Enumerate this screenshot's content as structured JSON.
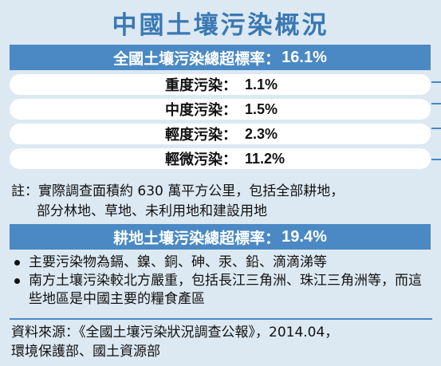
{
  "title": "中國土壤污染概況",
  "overall": {
    "label": "全國土壤污染總超標率：",
    "value": "16.1%"
  },
  "levels": [
    {
      "label": "重度污染：",
      "value": "1.1%"
    },
    {
      "label": "中度污染：",
      "value": "1.5%"
    },
    {
      "label": "輕度污染：",
      "value": "2.3%"
    },
    {
      "label": "輕微污染：",
      "value": "11.2%"
    }
  ],
  "note": {
    "line1": "註：實際調查面積約 630 萬平方公里，包括全部耕地，",
    "line2": "部分林地、草地、未利用地和建設用地"
  },
  "farmland": {
    "label": "耕地土壤污染總超標率：",
    "value": "19.4%"
  },
  "bullets": [
    "主要污染物為鎘、鎳、銅、砷、汞、鉛、滴滴涕等",
    "南方土壤污染較北方嚴重，包括長江三角洲、珠江三角洲等，而這些地區是中國主要的糧食產區"
  ],
  "source": {
    "line1": "資料來源：《全國土壤污染狀況調查公報》，2014.04，",
    "line2": "環境保護部、國土資源部"
  },
  "colors": {
    "accent": "#4a89c3",
    "title": "#3a78b3",
    "background": "#dce9f3"
  }
}
